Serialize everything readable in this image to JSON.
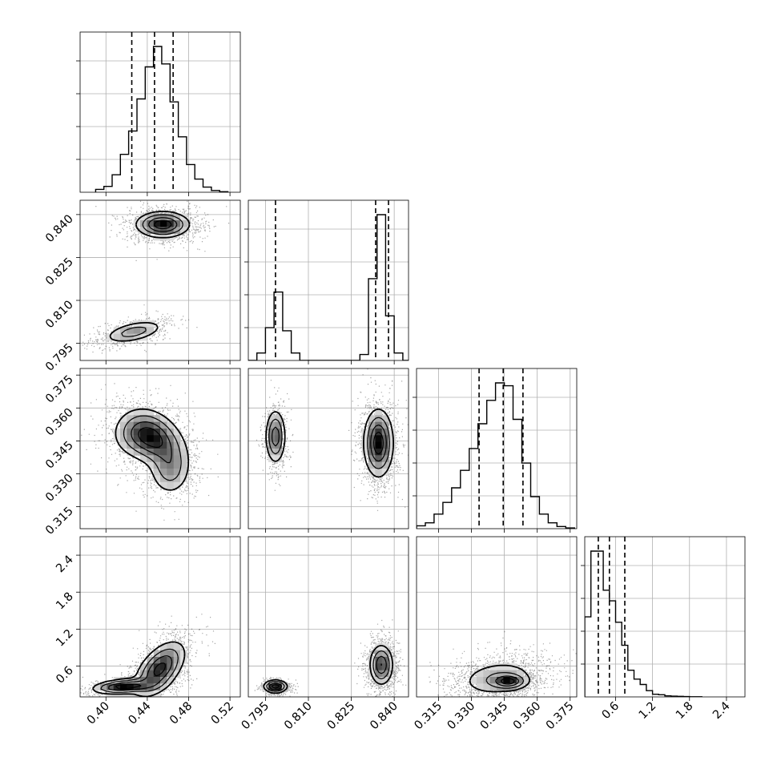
{
  "chart_data": {
    "type": "corner",
    "grid": true,
    "parameters": [
      {
        "range": [
          0.375,
          0.53
        ],
        "ticks": [
          0.4,
          0.44,
          0.48,
          0.52
        ],
        "tick_labels": [
          "0.40",
          "0.44",
          "0.48",
          "0.52"
        ],
        "quantiles": [
          0.425,
          0.447,
          0.465
        ],
        "hist": {
          "edges": [
            0.39,
            0.398,
            0.406,
            0.414,
            0.422,
            0.43,
            0.438,
            0.446,
            0.454,
            0.462,
            0.47,
            0.478,
            0.486,
            0.494,
            0.502,
            0.51,
            0.518
          ],
          "counts": [
            0.02,
            0.04,
            0.12,
            0.26,
            0.42,
            0.64,
            0.86,
            1.0,
            0.88,
            0.62,
            0.38,
            0.19,
            0.09,
            0.035,
            0.012,
            0.004
          ]
        }
      },
      {
        "range": [
          0.789,
          0.845
        ],
        "ticks": [
          0.795,
          0.81,
          0.825,
          0.84
        ],
        "tick_labels": [
          "0.795",
          "0.810",
          "0.825",
          "0.840"
        ],
        "quantiles": [
          0.7985,
          0.8335,
          0.838
        ],
        "hist": {
          "edges": [
            0.789,
            0.792,
            0.795,
            0.798,
            0.801,
            0.804,
            0.807,
            0.81,
            0.813,
            0.816,
            0.819,
            0.822,
            0.825,
            0.828,
            0.831,
            0.834,
            0.837,
            0.84,
            0.843,
            0.845
          ],
          "counts": [
            0.0,
            0.05,
            0.22,
            0.46,
            0.2,
            0.05,
            0.0,
            0.0,
            0.0,
            0.0,
            0.0,
            0.0,
            0.0,
            0.04,
            0.55,
            0.98,
            0.3,
            0.05,
            0.0
          ]
        }
      },
      {
        "range": [
          0.305,
          0.378
        ],
        "ticks": [
          0.315,
          0.33,
          0.345,
          0.36,
          0.375
        ],
        "tick_labels": [
          "0.315",
          "0.330",
          "0.345",
          "0.360",
          "0.375"
        ],
        "quantiles": [
          0.3335,
          0.3445,
          0.3535
        ],
        "hist": {
          "edges": [
            0.305,
            0.309,
            0.313,
            0.317,
            0.321,
            0.325,
            0.329,
            0.333,
            0.337,
            0.341,
            0.345,
            0.349,
            0.353,
            0.357,
            0.361,
            0.365,
            0.369,
            0.373,
            0.377
          ],
          "counts": [
            0.02,
            0.04,
            0.1,
            0.18,
            0.28,
            0.4,
            0.55,
            0.72,
            0.88,
            1.0,
            0.98,
            0.75,
            0.45,
            0.22,
            0.1,
            0.04,
            0.015,
            0.005
          ]
        }
      },
      {
        "range": [
          0.1,
          2.7
        ],
        "ticks": [
          0.6,
          1.2,
          1.8,
          2.4
        ],
        "tick_labels": [
          "0.6",
          "1.2",
          "1.8",
          "2.4"
        ],
        "quantiles": [
          0.32,
          0.5,
          0.75
        ],
        "hist": {
          "edges": [
            0.1,
            0.2,
            0.3,
            0.4,
            0.5,
            0.6,
            0.7,
            0.8,
            0.9,
            1.0,
            1.1,
            1.2,
            1.3,
            1.4,
            1.5,
            1.6,
            1.7,
            1.8,
            2.0
          ],
          "counts": [
            0.45,
            0.82,
            0.82,
            0.6,
            0.54,
            0.42,
            0.29,
            0.15,
            0.1,
            0.07,
            0.035,
            0.015,
            0.012,
            0.006,
            0.004,
            0.003,
            0.002,
            0.001
          ]
        }
      }
    ],
    "joint": [
      {
        "row": 1,
        "col": 0,
        "modes": [
          {
            "cx": 0.455,
            "cy": 0.8365,
            "sx": 0.0125,
            "sy": 0.0022,
            "rho": 0.0,
            "w": 0.72
          },
          {
            "cx": 0.427,
            "cy": 0.799,
            "sx": 0.0145,
            "sy": 0.002,
            "rho": 0.5,
            "w": 0.28
          }
        ]
      },
      {
        "row": 2,
        "col": 0,
        "modes": [
          {
            "cx": 0.448,
            "cy": 0.3455,
            "sx": 0.0145,
            "sy": 0.0065,
            "rho": -0.35,
            "w": 0.55
          },
          {
            "cx": 0.432,
            "cy": 0.348,
            "sx": 0.0135,
            "sy": 0.0055,
            "rho": 0.0,
            "w": 0.25
          },
          {
            "cx": 0.462,
            "cy": 0.332,
            "sx": 0.01,
            "sy": 0.006,
            "rho": 0.0,
            "w": 0.2
          }
        ]
      },
      {
        "row": 2,
        "col": 1,
        "modes": [
          {
            "cx": 0.7985,
            "cy": 0.347,
            "sx": 0.0017,
            "sy": 0.006,
            "rho": 0.0,
            "w": 0.28
          },
          {
            "cx": 0.8345,
            "cy": 0.344,
            "sx": 0.0025,
            "sy": 0.0075,
            "rho": 0.0,
            "w": 0.72
          }
        ]
      },
      {
        "row": 3,
        "col": 0,
        "modes": [
          {
            "cx": 0.452,
            "cy": 0.55,
            "sx": 0.012,
            "sy": 0.22,
            "rho": 0.55,
            "w": 0.7
          },
          {
            "cx": 0.418,
            "cy": 0.27,
            "sx": 0.015,
            "sy": 0.06,
            "rho": 0.3,
            "w": 0.3
          }
        ]
      },
      {
        "row": 3,
        "col": 1,
        "modes": [
          {
            "cx": 0.7985,
            "cy": 0.27,
            "sx": 0.002,
            "sy": 0.05,
            "rho": 0.0,
            "w": 0.28
          },
          {
            "cx": 0.8355,
            "cy": 0.62,
            "sx": 0.002,
            "sy": 0.16,
            "rho": 0.0,
            "w": 0.72
          }
        ]
      },
      {
        "row": 3,
        "col": 2,
        "modes": [
          {
            "cx": 0.342,
            "cy": 0.4,
            "sx": 0.009,
            "sy": 0.15,
            "rho": 0.2,
            "w": 0.7
          },
          {
            "cx": 0.347,
            "cy": 0.35,
            "sx": 0.004,
            "sy": 0.06,
            "rho": 0.0,
            "w": 0.3
          }
        ]
      }
    ]
  }
}
